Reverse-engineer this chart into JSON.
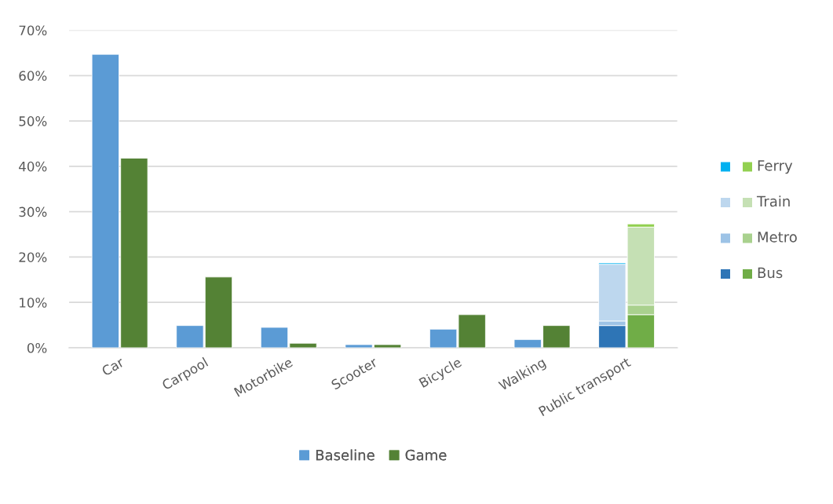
{
  "chart_data": {
    "type": "bar",
    "categories": [
      "Car",
      "Carpool",
      "Motorbike",
      "Scooter",
      "Bicycle",
      "Walking",
      "Public transport"
    ],
    "ylim": [
      0,
      70
    ],
    "yticks": [
      {
        "value": 0,
        "label": "0%"
      },
      {
        "value": 10,
        "label": "10%"
      },
      {
        "value": 20,
        "label": "20%"
      },
      {
        "value": 30,
        "label": "30%"
      },
      {
        "value": 40,
        "label": "40%"
      },
      {
        "value": 50,
        "label": "50%"
      },
      {
        "value": 60,
        "label": "60%"
      },
      {
        "value": 70,
        "label": "70%"
      }
    ],
    "grid": "y",
    "legend": "bottom",
    "series": [
      {
        "name": "Baseline",
        "color": "#5b9bd5",
        "values": [
          64.7,
          4.9,
          4.5,
          0.7,
          4.1,
          1.8,
          null
        ]
      },
      {
        "name": "Game",
        "color": "#548235",
        "values": [
          41.8,
          15.6,
          1.0,
          0.7,
          7.3,
          4.9,
          null
        ]
      },
      {
        "color": "#2e75b6",
        "base": [
          null,
          null,
          null,
          null,
          null,
          null,
          0
        ],
        "values": [
          null,
          null,
          null,
          null,
          null,
          null,
          4.9
        ]
      },
      {
        "name": "Bus",
        "color": "#70ad47",
        "base": [
          null,
          null,
          null,
          null,
          null,
          null,
          0
        ],
        "values": [
          null,
          null,
          null,
          null,
          null,
          null,
          7.3
        ]
      },
      {
        "color": "#9dc3e6",
        "base": [
          null,
          null,
          null,
          null,
          null,
          null,
          4.9
        ],
        "values": [
          null,
          null,
          null,
          null,
          null,
          null,
          1.0
        ]
      },
      {
        "name": "Metro",
        "color": "#a9d18e",
        "base": [
          null,
          null,
          null,
          null,
          null,
          null,
          7.3
        ],
        "values": [
          null,
          null,
          null,
          null,
          null,
          null,
          2.1
        ]
      },
      {
        "color": "#bdd7ee",
        "base": [
          null,
          null,
          null,
          null,
          null,
          null,
          5.9
        ],
        "values": [
          null,
          null,
          null,
          null,
          null,
          null,
          12.5
        ]
      },
      {
        "name": "Train",
        "color": "#c5e0b4",
        "base": [
          null,
          null,
          null,
          null,
          null,
          null,
          9.4
        ],
        "values": [
          null,
          null,
          null,
          null,
          null,
          null,
          17.2
        ]
      },
      {
        "color": "#00b0f0",
        "base": [
          null,
          null,
          null,
          null,
          null,
          null,
          18.4
        ],
        "values": [
          null,
          null,
          null,
          null,
          null,
          null,
          0.3
        ]
      },
      {
        "name": "Ferry",
        "color": "#92d050",
        "base": [
          null,
          null,
          null,
          null,
          null,
          null,
          26.6
        ],
        "values": [
          null,
          null,
          null,
          null,
          null,
          null,
          0.7
        ]
      }
    ]
  }
}
